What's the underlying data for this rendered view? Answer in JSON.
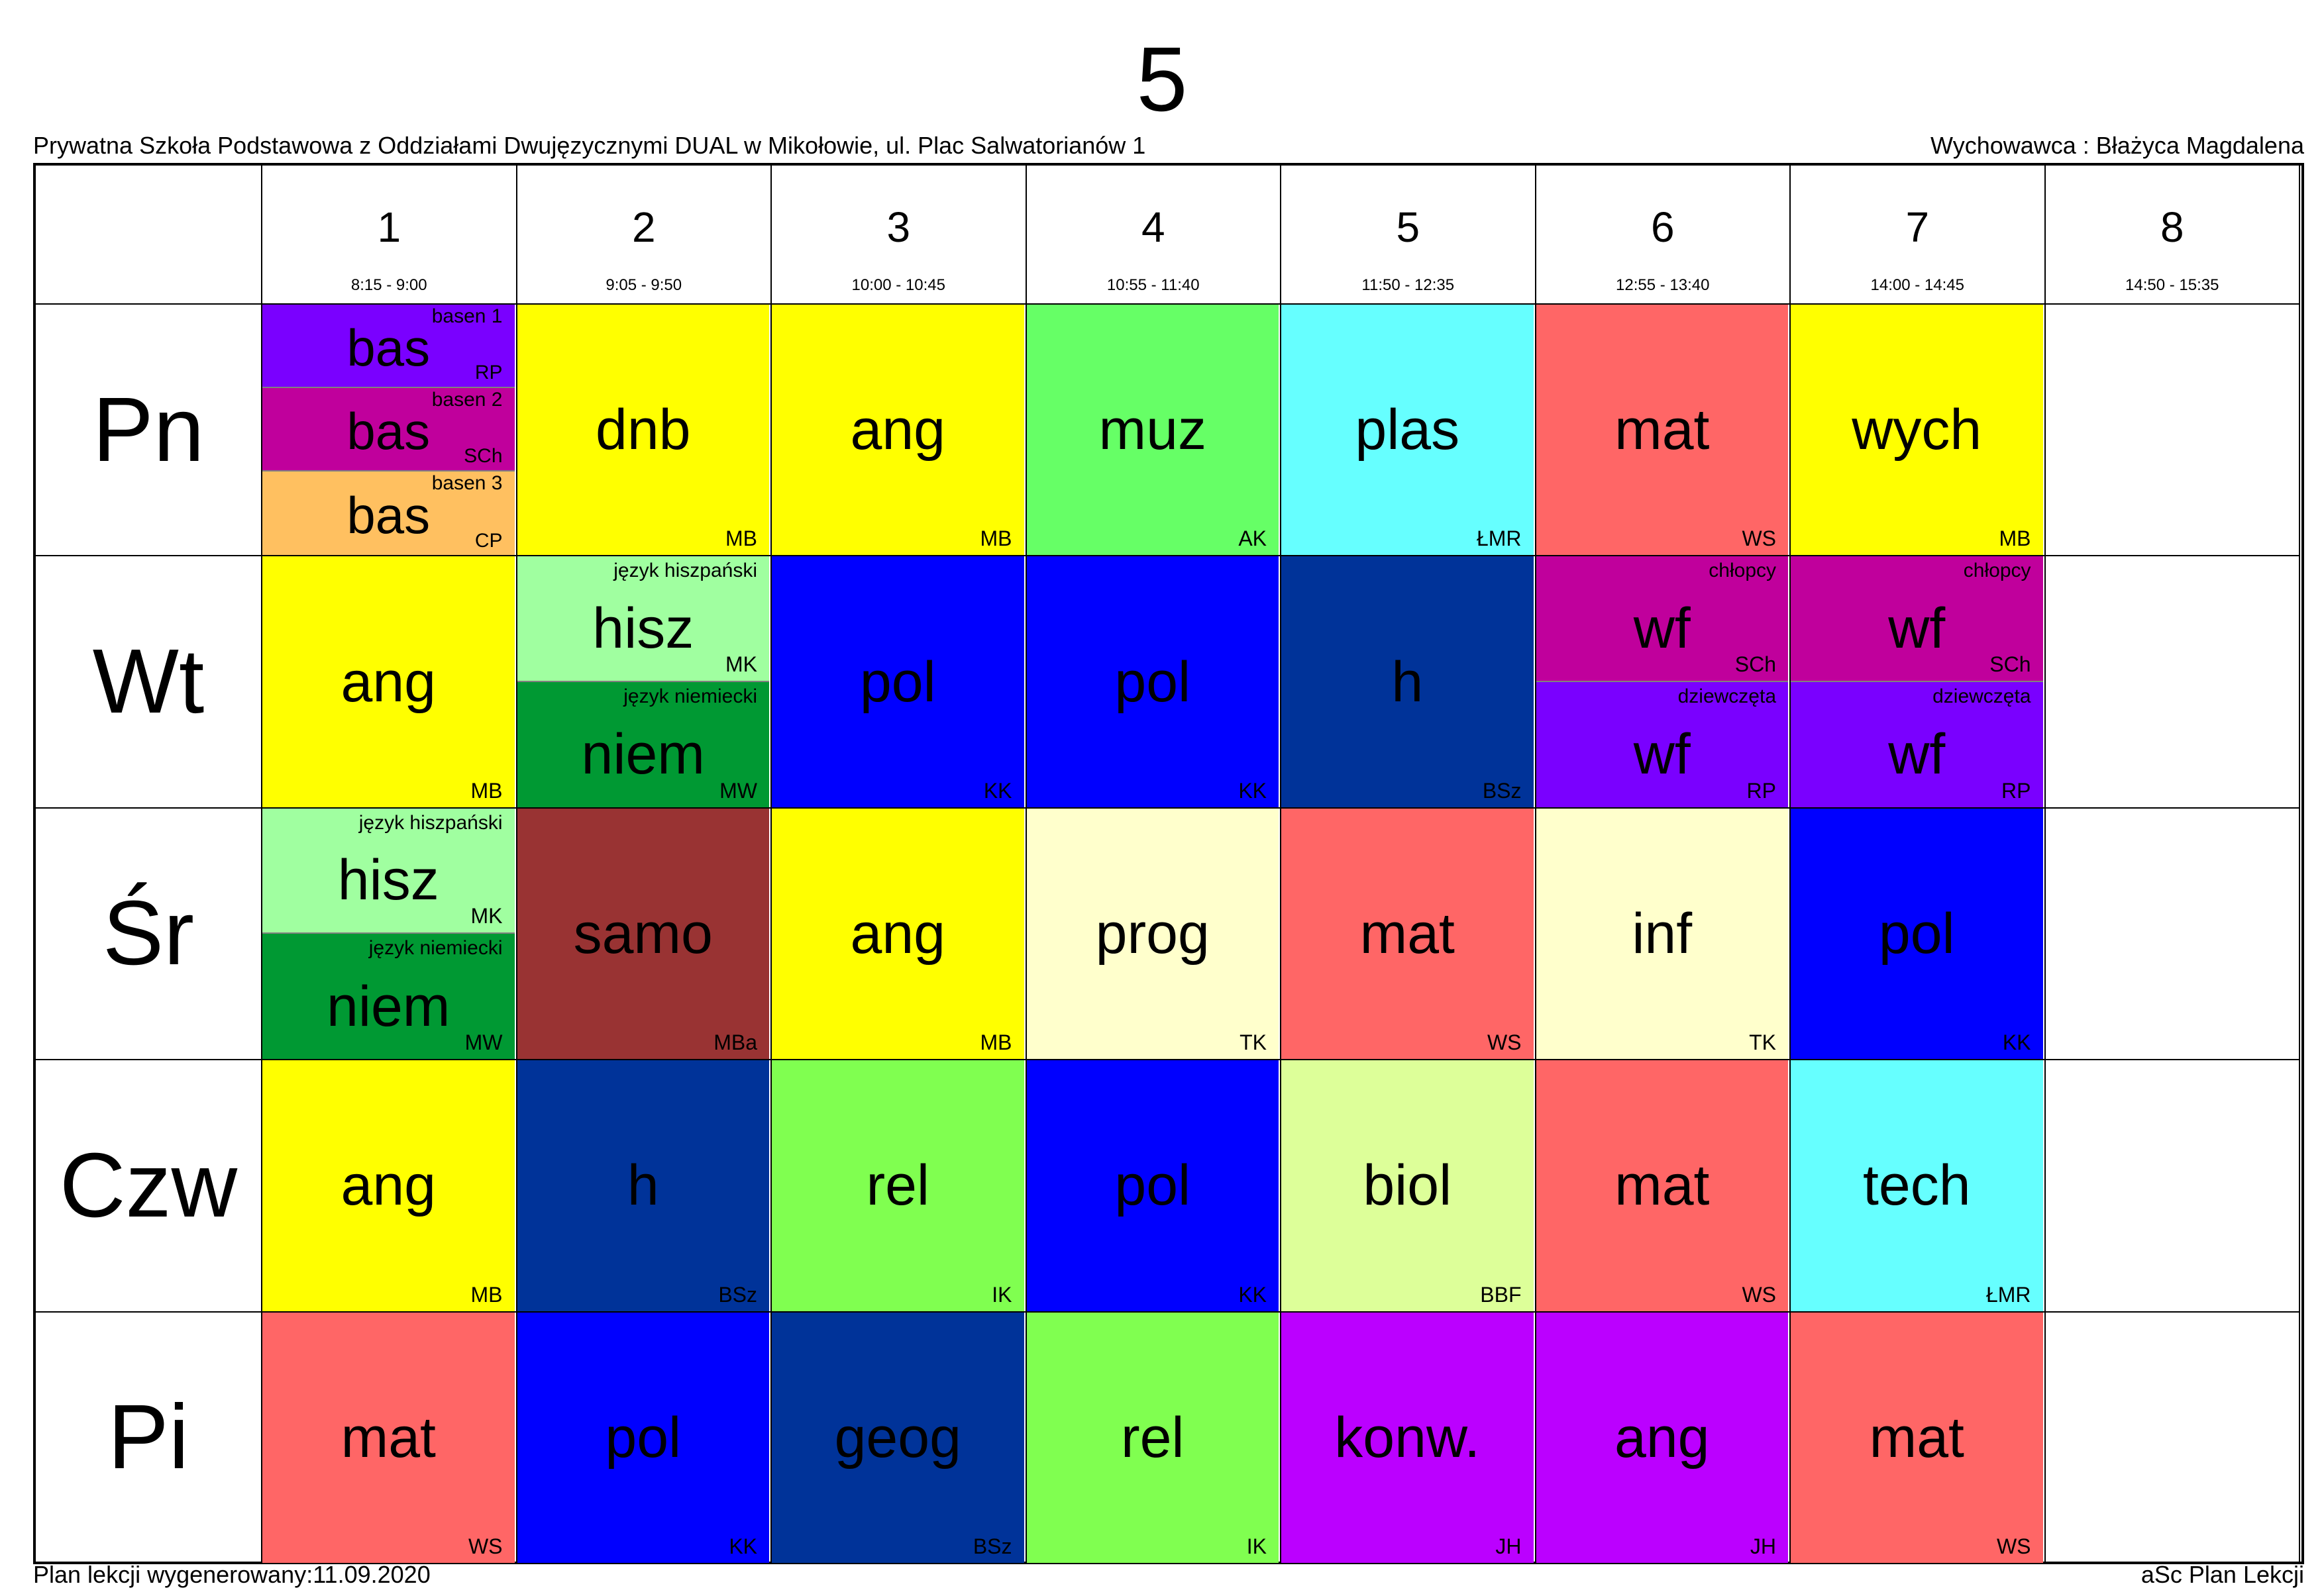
{
  "header": {
    "class_title": "5",
    "school": "Prywatna Szkoła Podstawowa z Oddziałami Dwujęzycznymi DUAL w Mikołowie, ul. Plac Salwatorianów 1",
    "homeroom_teacher": "Wychowawca : Błażyca Magdalena"
  },
  "footer": {
    "generated": "Plan lekcji wygenerowany:11.09.2020",
    "software": "aSc Plan Lekcji"
  },
  "periods": [
    {
      "num": "1",
      "time": "8:15 - 9:00"
    },
    {
      "num": "2",
      "time": "9:05 - 9:50"
    },
    {
      "num": "3",
      "time": "10:00 - 10:45"
    },
    {
      "num": "4",
      "time": "10:55 - 11:40"
    },
    {
      "num": "5",
      "time": "11:50 - 12:35"
    },
    {
      "num": "6",
      "time": "12:55 - 13:40"
    },
    {
      "num": "7",
      "time": "14:00 - 14:45"
    },
    {
      "num": "8",
      "time": "14:50 - 15:35"
    }
  ],
  "days": [
    {
      "name": "Pn",
      "lessons": [
        [
          {
            "subject": "bas",
            "teacher": "RP",
            "group": "basen 1",
            "color": "#7a00ff"
          },
          {
            "subject": "bas",
            "teacher": "SCh",
            "group": "basen 2",
            "color": "#c0009c"
          },
          {
            "subject": "bas",
            "teacher": "CP",
            "group": "basen 3",
            "color": "#ffc060"
          }
        ],
        [
          {
            "subject": "dnb",
            "teacher": "MB",
            "group": "",
            "color": "#ffff00"
          }
        ],
        [
          {
            "subject": "ang",
            "teacher": "MB",
            "group": "",
            "color": "#ffff00"
          }
        ],
        [
          {
            "subject": "muz",
            "teacher": "AK",
            "group": "",
            "color": "#66ff66"
          }
        ],
        [
          {
            "subject": "plas",
            "teacher": "ŁMR",
            "group": "",
            "color": "#66ffff"
          }
        ],
        [
          {
            "subject": "mat",
            "teacher": "WS",
            "group": "",
            "color": "#ff6666"
          }
        ],
        [
          {
            "subject": "wych",
            "teacher": "MB",
            "group": "",
            "color": "#ffff00"
          }
        ],
        []
      ]
    },
    {
      "name": "Wt",
      "lessons": [
        [
          {
            "subject": "ang",
            "teacher": "MB",
            "group": "",
            "color": "#ffff00"
          }
        ],
        [
          {
            "subject": "hisz",
            "teacher": "MK",
            "group": "język hiszpański",
            "color": "#a0ffa0"
          },
          {
            "subject": "niem",
            "teacher": "MW",
            "group": "język niemiecki",
            "color": "#009933"
          }
        ],
        [
          {
            "subject": "pol",
            "teacher": "KK",
            "group": "",
            "color": "#0000ff"
          }
        ],
        [
          {
            "subject": "pol",
            "teacher": "KK",
            "group": "",
            "color": "#0000ff"
          }
        ],
        [
          {
            "subject": "h",
            "teacher": "BSz",
            "group": "",
            "color": "#003399"
          }
        ],
        [
          {
            "subject": "wf",
            "teacher": "SCh",
            "group": "chłopcy",
            "color": "#c0009c"
          },
          {
            "subject": "wf",
            "teacher": "RP",
            "group": "dziewczęta",
            "color": "#7a00ff"
          }
        ],
        [
          {
            "subject": "wf",
            "teacher": "SCh",
            "group": "chłopcy",
            "color": "#c0009c"
          },
          {
            "subject": "wf",
            "teacher": "RP",
            "group": "dziewczęta",
            "color": "#7a00ff"
          }
        ],
        []
      ]
    },
    {
      "name": "Śr",
      "lessons": [
        [
          {
            "subject": "hisz",
            "teacher": "MK",
            "group": "język hiszpański",
            "color": "#a0ffa0"
          },
          {
            "subject": "niem",
            "teacher": "MW",
            "group": "język niemiecki",
            "color": "#009933"
          }
        ],
        [
          {
            "subject": "samo",
            "teacher": "MBa",
            "group": "",
            "color": "#993333"
          }
        ],
        [
          {
            "subject": "ang",
            "teacher": "MB",
            "group": "",
            "color": "#ffff00"
          }
        ],
        [
          {
            "subject": "prog",
            "teacher": "TK",
            "group": "",
            "color": "#ffffcc"
          }
        ],
        [
          {
            "subject": "mat",
            "teacher": "WS",
            "group": "",
            "color": "#ff6666"
          }
        ],
        [
          {
            "subject": "inf",
            "teacher": "TK",
            "group": "",
            "color": "#ffffcc"
          }
        ],
        [
          {
            "subject": "pol",
            "teacher": "KK",
            "group": "",
            "color": "#0000ff"
          }
        ],
        []
      ]
    },
    {
      "name": "Czw",
      "lessons": [
        [
          {
            "subject": "ang",
            "teacher": "MB",
            "group": "",
            "color": "#ffff00"
          }
        ],
        [
          {
            "subject": "h",
            "teacher": "BSz",
            "group": "",
            "color": "#003399"
          }
        ],
        [
          {
            "subject": "rel",
            "teacher": "IK",
            "group": "",
            "color": "#80ff50"
          }
        ],
        [
          {
            "subject": "pol",
            "teacher": "KK",
            "group": "",
            "color": "#0000ff"
          }
        ],
        [
          {
            "subject": "biol",
            "teacher": "BBF",
            "group": "",
            "color": "#ddff99"
          }
        ],
        [
          {
            "subject": "mat",
            "teacher": "WS",
            "group": "",
            "color": "#ff6666"
          }
        ],
        [
          {
            "subject": "tech",
            "teacher": "ŁMR",
            "group": "",
            "color": "#66ffff"
          }
        ],
        []
      ]
    },
    {
      "name": "Pi",
      "lessons": [
        [
          {
            "subject": "mat",
            "teacher": "WS",
            "group": "",
            "color": "#ff6666"
          }
        ],
        [
          {
            "subject": "pol",
            "teacher": "KK",
            "group": "",
            "color": "#0000ff"
          }
        ],
        [
          {
            "subject": "geog",
            "teacher": "BSz",
            "group": "",
            "color": "#003399"
          }
        ],
        [
          {
            "subject": "rel",
            "teacher": "IK",
            "group": "",
            "color": "#80ff50"
          }
        ],
        [
          {
            "subject": "konw.",
            "teacher": "JH",
            "group": "",
            "color": "#bb00ff"
          }
        ],
        [
          {
            "subject": "ang",
            "teacher": "JH",
            "group": "",
            "color": "#bb00ff"
          }
        ],
        [
          {
            "subject": "mat",
            "teacher": "WS",
            "group": "",
            "color": "#ff6666"
          }
        ],
        []
      ]
    }
  ]
}
